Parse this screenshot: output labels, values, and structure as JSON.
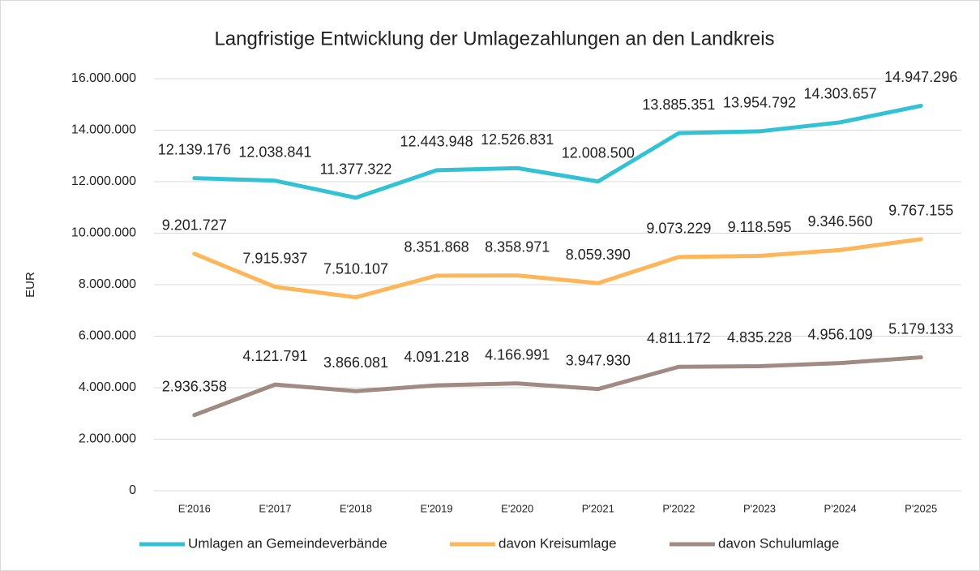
{
  "chart_data": {
    "type": "line",
    "title": "Langfristige Entwicklung der Umlagezahlungen an den Landkreis",
    "y_label": "EUR",
    "categories": [
      "E'2016",
      "E'2017",
      "E'2018",
      "E'2019",
      "E'2020",
      "P'2021",
      "P'2022",
      "P'2023",
      "P'2024",
      "P'2025"
    ],
    "series": [
      {
        "name": "Umlagen an Gemeindeverbände",
        "color": "#33c1d4",
        "values": [
          12139176,
          12038841,
          11377322,
          12443948,
          12526831,
          12008500,
          13885351,
          13954792,
          14303657,
          14947296
        ],
        "value_labels": [
          "12.139.176",
          "12.038.841",
          "11.377.322",
          "12.443.948",
          "12.526.831",
          "12.008.500",
          "13.885.351",
          "13.954.792",
          "14.303.657",
          "14.947.296"
        ]
      },
      {
        "name": "davon Kreisumlage",
        "color": "#fdb65a",
        "values": [
          9201727,
          7915937,
          7510107,
          8351868,
          8358971,
          8059390,
          9073229,
          9118595,
          9346560,
          9767155
        ],
        "value_labels": [
          "9.201.727",
          "7.915.937",
          "7.510.107",
          "8.351.868",
          "8.358.971",
          "8.059.390",
          "9.073.229",
          "9.118.595",
          "9.346.560",
          "9.767.155"
        ]
      },
      {
        "name": "davon Schulumlage",
        "color": "#a08a82",
        "values": [
          2936358,
          4121791,
          3866081,
          4091218,
          4166991,
          3947930,
          4811172,
          4835228,
          4956109,
          5179133
        ],
        "value_labels": [
          "2.936.358",
          "4.121.791",
          "3.866.081",
          "4.091.218",
          "4.166.991",
          "3.947.930",
          "4.811.172",
          "4.835.228",
          "4.956.109",
          "5.179.133"
        ]
      }
    ],
    "ylim": [
      0,
      16000000
    ],
    "yticks": [
      0,
      {
        "value": 2000000,
        "label": "2.000.000"
      },
      {
        "value": 4000000,
        "label": "4.000.000"
      },
      {
        "value": 6000000,
        "label": "6.000.000"
      },
      {
        "value": 8000000,
        "label": "8.000.000"
      },
      {
        "value": 10000000,
        "label": "10.000.000"
      },
      {
        "value": 12000000,
        "label": "12.000.000"
      },
      {
        "value": 14000000,
        "label": "14.000.000"
      },
      {
        "value": 16000000,
        "label": "16.000.000"
      }
    ],
    "grid": true,
    "legend": "bottom"
  }
}
